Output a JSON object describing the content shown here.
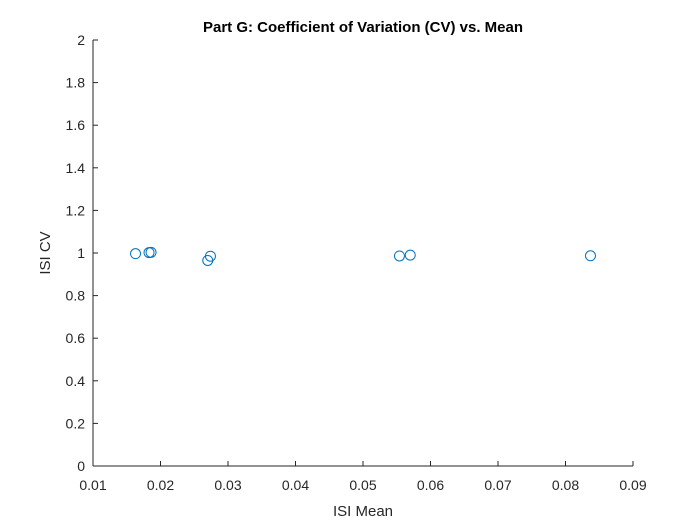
{
  "chart_data": {
    "type": "scatter",
    "title": "Part G: Coefficient of Variation (CV) vs. Mean",
    "xlabel": "ISI Mean",
    "ylabel": "ISI CV",
    "xlim": [
      0.01,
      0.09
    ],
    "ylim": [
      0,
      2
    ],
    "xticks": [
      "0.01",
      "0.02",
      "0.03",
      "0.04",
      "0.05",
      "0.06",
      "0.07",
      "0.08",
      "0.09"
    ],
    "yticks": [
      "0",
      "0.2",
      "0.4",
      "0.6",
      "0.8",
      "1",
      "1.2",
      "1.4",
      "1.6",
      "1.8",
      "2"
    ],
    "grid": false,
    "marker": "open-circle",
    "color": "#0072BD",
    "series": [
      {
        "x": [
          0.0163,
          0.0183,
          0.0186,
          0.027,
          0.0274,
          0.0554,
          0.057,
          0.0837
        ],
        "y": [
          0.997,
          1.002,
          1.003,
          0.965,
          0.985,
          0.986,
          0.99,
          0.987
        ]
      }
    ]
  }
}
